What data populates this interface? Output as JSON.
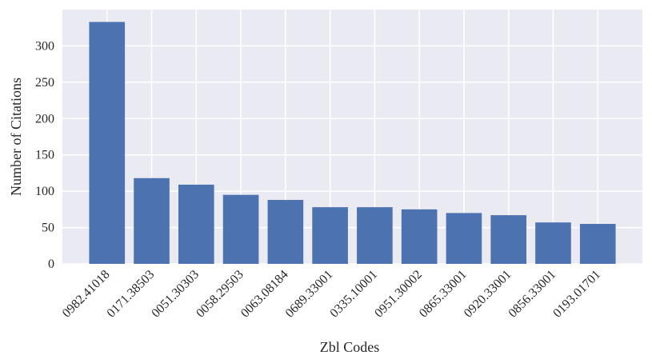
{
  "chart_data": {
    "type": "bar",
    "x_label": "Zbl Codes",
    "y_label": "Number of Citations",
    "categories": [
      "0982.41018",
      "0171.38503",
      "0051.30303",
      "0058.29503",
      "0063.08184",
      "0689.33001",
      "0335.10001",
      "0951.30002",
      "0865.33001",
      "0920.33001",
      "0856.33001",
      "0193.01701"
    ],
    "values": [
      333,
      118,
      109,
      95,
      88,
      78,
      78,
      75,
      70,
      67,
      57,
      55
    ],
    "color": "#4c72b0",
    "ylim": [
      0,
      350
    ],
    "yticks": [
      0,
      50,
      100,
      150,
      200,
      250,
      300
    ],
    "grid": true
  }
}
